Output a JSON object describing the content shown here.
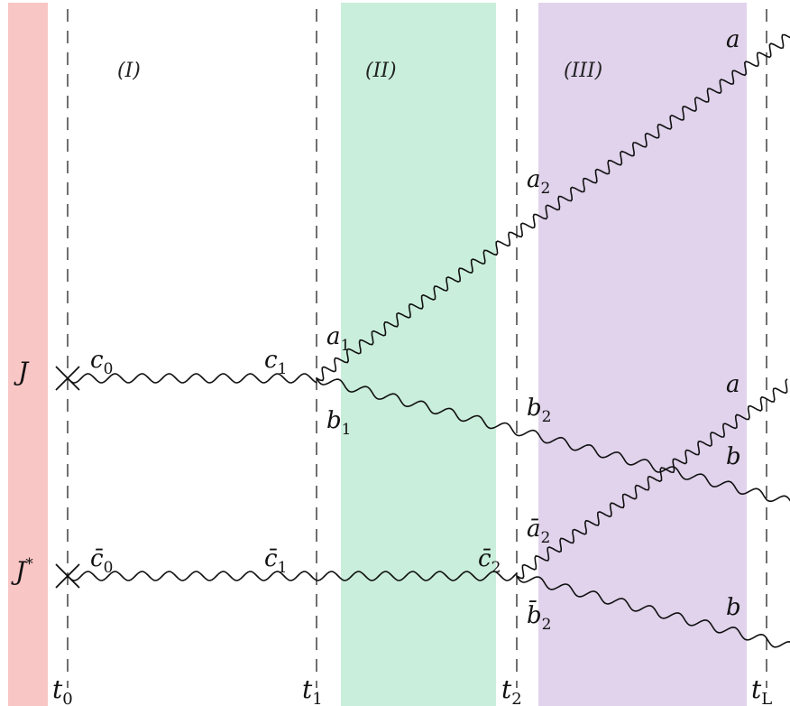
{
  "bands": [
    {
      "id": "source-band",
      "color": "#f9c6c6"
    },
    {
      "id": "region-ii-band",
      "color": "#c9eedb"
    },
    {
      "id": "region-iii-band",
      "color": "#e1d3ec"
    }
  ],
  "region_labels": {
    "i": "(I)",
    "ii": "(II)",
    "iii": "(III)"
  },
  "sources": {
    "j": "J",
    "j_star_base": "J",
    "j_star_sup": "*"
  },
  "time_labels": [
    {
      "base": "t",
      "sub": "0"
    },
    {
      "base": "t",
      "sub": "1"
    },
    {
      "base": "t",
      "sub": "2"
    },
    {
      "base": "t",
      "sub": "L"
    }
  ],
  "field_labels": {
    "c0": {
      "base": "c",
      "sub": "0"
    },
    "c1": {
      "base": "c",
      "sub": "1"
    },
    "a1": {
      "base": "a",
      "sub": "1"
    },
    "b1": {
      "base": "b",
      "sub": "1"
    },
    "a2": {
      "base": "a",
      "sub": "2"
    },
    "b2": {
      "base": "b",
      "sub": "2"
    },
    "cbar0": {
      "base": "c̄",
      "sub": "0"
    },
    "cbar1": {
      "base": "c̄",
      "sub": "1"
    },
    "cbar2": {
      "base": "c̄",
      "sub": "2"
    },
    "abar2": {
      "base": "ā",
      "sub": "2"
    },
    "bbar2": {
      "base": "b̄",
      "sub": "2"
    }
  },
  "end_labels": {
    "a_top": "a",
    "a_mid": "a",
    "b_mid": "b",
    "b_bot": "b"
  }
}
